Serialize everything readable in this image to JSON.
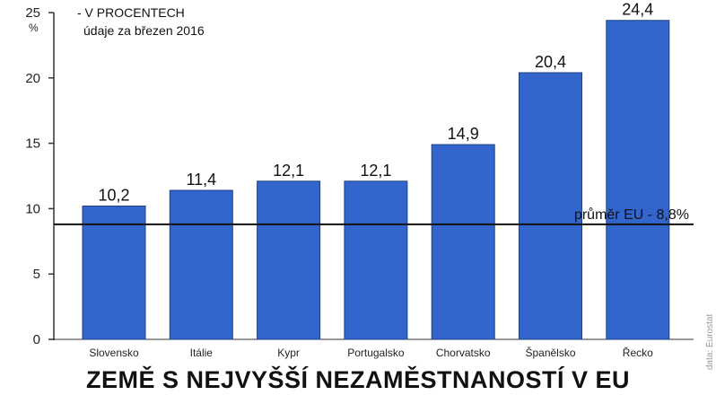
{
  "chart_data": {
    "type": "bar",
    "title": "ZEMĚ S NEJVYŠŠÍ NEZAMĚSTNANOSTÍ V EU",
    "subtitle_line1": "- V PROCENTECH",
    "subtitle_line2": "údaje za březen 2016",
    "ylabel": "%",
    "ylim": [
      0,
      25
    ],
    "yticks": [
      "0",
      "5",
      "10",
      "15",
      "20",
      "25"
    ],
    "grid": false,
    "categories": [
      "Slovensko",
      "Itálie",
      "Kypr",
      "Portugalsko",
      "Chorvatsko",
      "Španělsko",
      "Řecko"
    ],
    "values": [
      10.2,
      11.4,
      12.1,
      12.1,
      14.9,
      20.4,
      24.4
    ],
    "value_labels": [
      "10,2",
      "11,4",
      "12,1",
      "12,1",
      "14,9",
      "20,4",
      "24,4"
    ],
    "reference_line": {
      "value": 8.8,
      "label": "průměr EU - 8,8%"
    },
    "source": "data: Eurostat",
    "colors": {
      "bar": "#3366cc",
      "bar_edge": "#1f3f85",
      "axis": "#333333",
      "reference": "#111111"
    }
  }
}
